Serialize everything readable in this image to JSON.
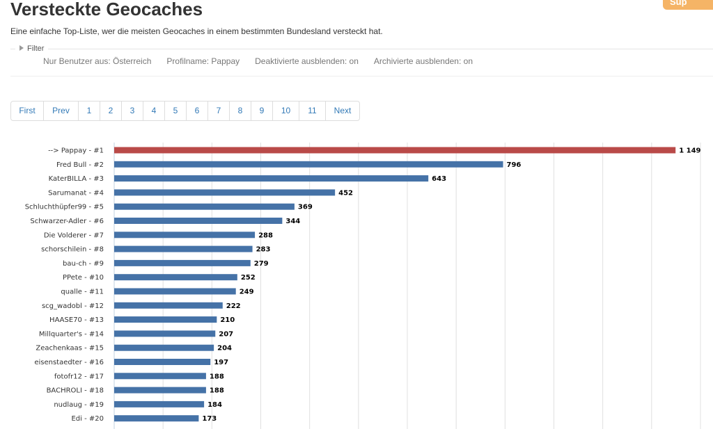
{
  "page": {
    "title": "Versteckte Geocaches",
    "subtitle": "Eine einfache Top-Liste, wer die meisten Geocaches in einem bestimmten Bundesland versteckt hat.",
    "corner_button": "Sup"
  },
  "filter": {
    "legend": "Filter",
    "summary": [
      "Nur Benutzer aus: Österreich",
      "Profilname: Pappay",
      "Deaktivierte ausblenden: on",
      "Archivierte ausblenden: on"
    ]
  },
  "pagination": {
    "first": "First",
    "prev": "Prev",
    "pages": [
      "1",
      "2",
      "3",
      "4",
      "5",
      "6",
      "7",
      "8",
      "9",
      "10",
      "11"
    ],
    "next": "Next"
  },
  "colors": {
    "highlight_bar": "#b94a48",
    "bar": "#4572a7",
    "link": "#337ab7"
  },
  "chart_data": {
    "type": "bar",
    "orientation": "horizontal",
    "categories": [
      "--> Pappay - #1",
      "Fred Bull - #2",
      "KaterBILLA - #3",
      "Sarumanat - #4",
      "Schluchthüpfer99 - #5",
      "Schwarzer-Adler - #6",
      "Die Volderer - #7",
      "schorschilein - #8",
      "bau-ch - #9",
      "PPete - #10",
      "qualle - #11",
      "scg_wadobl - #12",
      "HAASE70 - #13",
      "Millquarter's - #14",
      "Zeachenkaas - #15",
      "eisenstaedter - #16",
      "fotofr12 - #17",
      "BACHROLI - #18",
      "nudlaug - #19",
      "Edi - #20"
    ],
    "values": [
      1149,
      796,
      643,
      452,
      369,
      344,
      288,
      283,
      279,
      252,
      249,
      222,
      210,
      207,
      204,
      197,
      188,
      188,
      184,
      173
    ],
    "value_labels": [
      "1 149",
      "796",
      "643",
      "452",
      "369",
      "344",
      "288",
      "283",
      "279",
      "252",
      "249",
      "222",
      "210",
      "207",
      "204",
      "197",
      "188",
      "188",
      "184",
      "173"
    ],
    "highlight_index": 0,
    "xlim": [
      0,
      1200
    ],
    "grid": true
  }
}
